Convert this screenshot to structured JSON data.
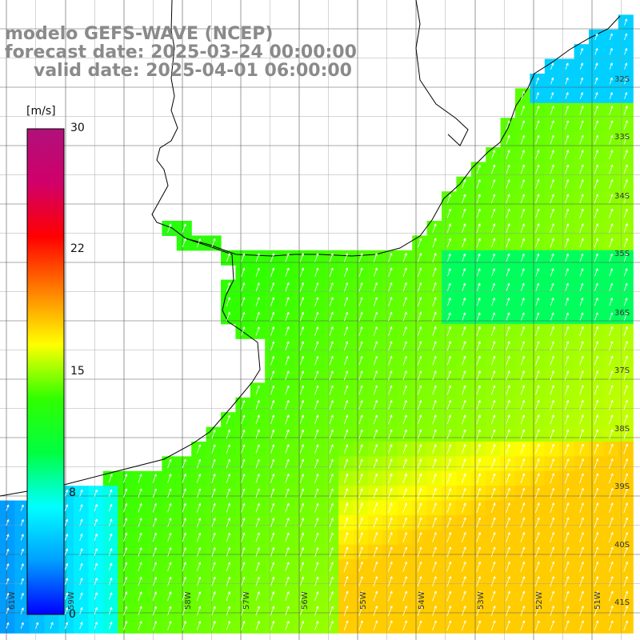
{
  "header": {
    "model": "modelo GEFS-WAVE (NCEP)",
    "forecast": "forecast date: 2025-03-24 00:00:00",
    "valid": "valid date: 2025-04-01 06:00:00"
  },
  "colorbar": {
    "unit": "[m/s]",
    "ticks": [
      "30",
      "22",
      "15",
      "8",
      "0"
    ],
    "min": 0,
    "max": 30,
    "colors": [
      "#0000ff",
      "#00a0ff",
      "#00ffff",
      "#00ff40",
      "#30ff00",
      "#ffff00",
      "#ff8000",
      "#ff0000",
      "#d0006a",
      "#b0107a"
    ]
  },
  "lat_labels": [
    "32S",
    "33S",
    "34S",
    "35S",
    "36S",
    "37S",
    "38S",
    "39S",
    "40S",
    "41S"
  ],
  "lon_labels": [
    "61W",
    "59W",
    "58W",
    "57W",
    "56W",
    "55W",
    "54W",
    "53W",
    "52W",
    "51W"
  ],
  "field": {
    "variable": "wind speed",
    "direction": "arrows point toward north-northeast"
  }
}
